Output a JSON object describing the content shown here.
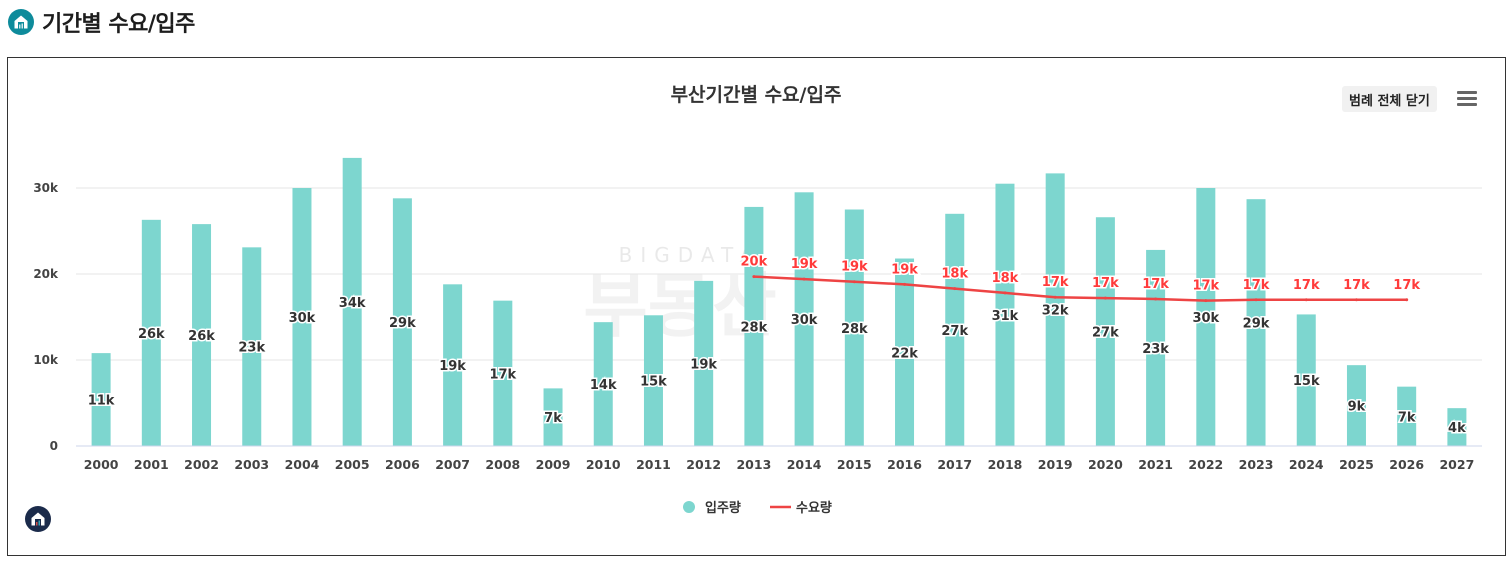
{
  "page": {
    "title": "기간별 수요/입주"
  },
  "toolbar": {
    "legend_toggle_label": "범례 전체 닫기"
  },
  "icons": {
    "header_logo": "house-logo-icon",
    "menu": "hamburger-menu-icon",
    "footer_logo": "house-logo-icon",
    "watermark": "watermark-logo"
  },
  "watermark": {
    "top_text": "BIGDATA",
    "main_text": "부동산"
  },
  "colors": {
    "bar": "#7dd6cf",
    "line": "#ee4444",
    "demand_label": "#ff3b3b",
    "grid": "#e6e6e6"
  },
  "chart_data": {
    "type": "bar",
    "title": "부산기간별 수요/입주",
    "xlabel": "",
    "ylabel": "",
    "ylim": [
      0,
      35000
    ],
    "yticks": [
      0,
      10000,
      20000,
      30000
    ],
    "ytick_labels": [
      "0",
      "10k",
      "20k",
      "30k"
    ],
    "grid": true,
    "legend_position": "bottom",
    "categories": [
      "2000",
      "2001",
      "2002",
      "2003",
      "2004",
      "2005",
      "2006",
      "2007",
      "2008",
      "2009",
      "2010",
      "2011",
      "2012",
      "2013",
      "2014",
      "2015",
      "2016",
      "2017",
      "2018",
      "2019",
      "2020",
      "2021",
      "2022",
      "2023",
      "2024",
      "2025",
      "2026",
      "2027"
    ],
    "series": [
      {
        "name": "입주량",
        "type": "bar",
        "values": [
          10800,
          26300,
          25800,
          23100,
          30000,
          33500,
          28800,
          18800,
          16900,
          6700,
          14400,
          15200,
          19200,
          27800,
          29500,
          27500,
          21800,
          27000,
          30500,
          31700,
          26600,
          22800,
          30000,
          28700,
          15300,
          9400,
          6900,
          4400
        ],
        "labels": [
          "11k",
          "26k",
          "26k",
          "23k",
          "30k",
          "34k",
          "29k",
          "19k",
          "17k",
          "7k",
          "14k",
          "15k",
          "19k",
          "28k",
          "30k",
          "28k",
          "22k",
          "27k",
          "31k",
          "32k",
          "27k",
          "23k",
          "30k",
          "29k",
          "15k",
          "9k",
          "7k",
          "4k"
        ]
      },
      {
        "name": "수요량",
        "type": "line",
        "values": [
          null,
          null,
          null,
          null,
          null,
          null,
          null,
          null,
          null,
          null,
          null,
          null,
          null,
          19700,
          19400,
          19100,
          18800,
          18300,
          17800,
          17300,
          17200,
          17100,
          16900,
          17000,
          17000,
          17000,
          17000,
          null
        ],
        "labels": [
          null,
          null,
          null,
          null,
          null,
          null,
          null,
          null,
          null,
          null,
          null,
          null,
          null,
          "20k",
          "19k",
          "19k",
          "19k",
          "18k",
          "18k",
          "17k",
          "17k",
          "17k",
          "17k",
          "17k",
          "17k",
          "17k",
          "17k",
          null
        ]
      }
    ]
  }
}
